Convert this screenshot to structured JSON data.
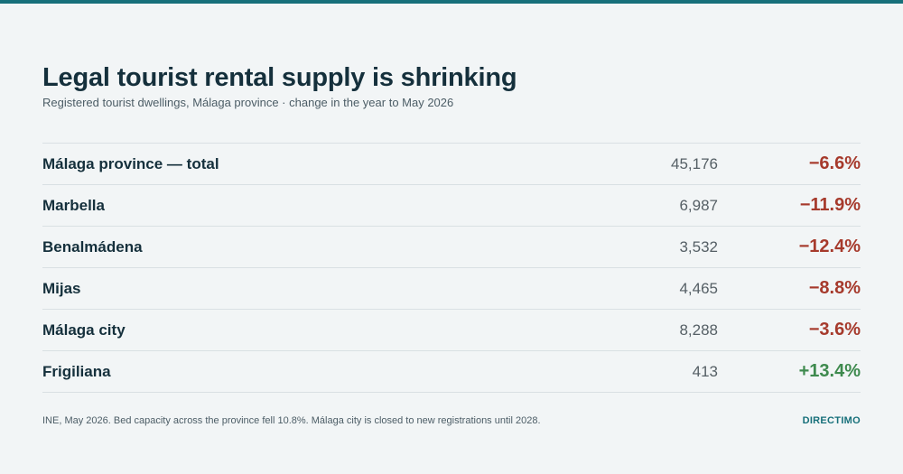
{
  "header": {
    "title": "Legal tourist rental supply is shrinking",
    "subtitle": "Registered tourist dwellings, Málaga province · change in the year to May 2026"
  },
  "table": {
    "rows": [
      {
        "name": "Málaga province — total",
        "count": "45,176",
        "change": "−6.6%",
        "color": "#a63a2c"
      },
      {
        "name": "Marbella",
        "count": "6,987",
        "change": "−11.9%",
        "color": "#a63a2c"
      },
      {
        "name": "Benalmádena",
        "count": "3,532",
        "change": "−12.4%",
        "color": "#a63a2c"
      },
      {
        "name": "Mijas",
        "count": "4,465",
        "change": "−8.8%",
        "color": "#a63a2c"
      },
      {
        "name": "Málaga city",
        "count": "8,288",
        "change": "−3.6%",
        "color": "#a63a2c"
      },
      {
        "name": "Frigiliana",
        "count": "413",
        "change": "+13.4%",
        "color": "#3e8a4e"
      }
    ]
  },
  "footer": {
    "note": "INE, May 2026. Bed capacity across the province fell 10.8%. Málaga city is closed to new registrations until 2028.",
    "brand": "DIRECTIMO"
  }
}
